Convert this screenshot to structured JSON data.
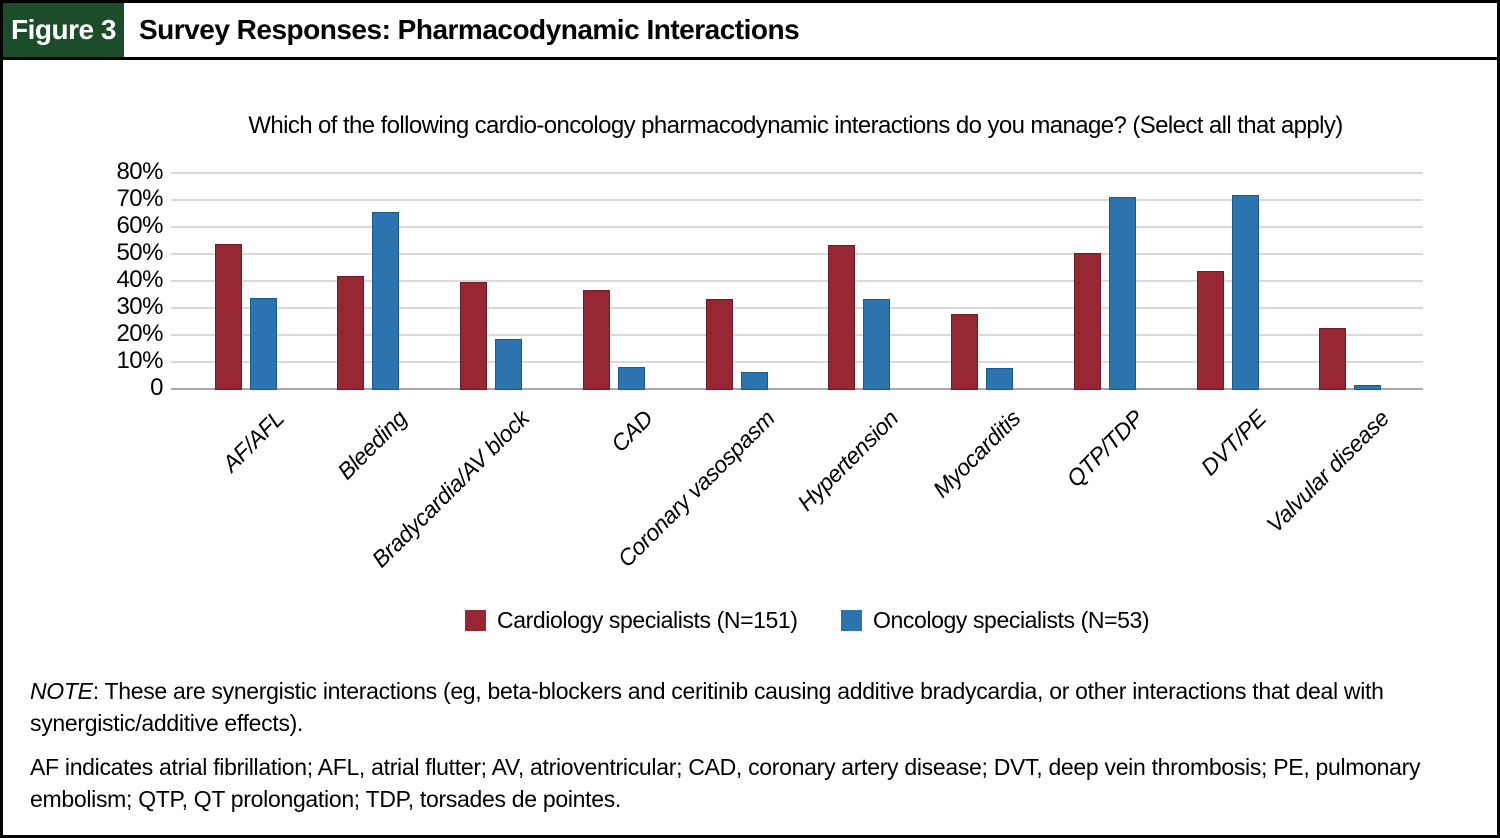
{
  "figure": {
    "tag": "Figure 3",
    "title": "Survey Responses: Pharmacodynamic Interactions"
  },
  "chart_data": {
    "type": "bar",
    "title": "Which of the following cardio-oncology pharmacodynamic interactions do you manage? (Select all that apply)",
    "categories": [
      "AF/AFL",
      "Bleeding",
      "Bradycardia/AV block",
      "CAD",
      "Coronary vasospasm",
      "Hypertension",
      "Myocarditis",
      "QTP/TDP",
      "DVT/PE",
      "Valvular disease"
    ],
    "series": [
      {
        "name": "Cardiology specialists (N=151)",
        "color": "#972833",
        "border": "#6E1C26",
        "values": [
          54,
          42,
          40,
          37,
          33.5,
          53.5,
          28,
          50.5,
          44,
          23
        ]
      },
      {
        "name": "Oncology specialists (N=53)",
        "color": "#2B74B0",
        "border": "#1A5A91",
        "values": [
          34,
          66,
          19,
          8.5,
          6.5,
          33.5,
          8,
          71.5,
          72,
          2
        ]
      }
    ],
    "ylabel": "",
    "xlabel": "",
    "ylim": [
      0,
      80
    ],
    "ytick_step": 10,
    "ytick_labels": [
      "0",
      "10%",
      "20%",
      "30%",
      "40%",
      "50%",
      "60%",
      "70%",
      "80%"
    ],
    "grid": true,
    "legend_position": "bottom"
  },
  "notes": {
    "note_label": "NOTE",
    "note_text": ": These are synergistic interactions (eg, beta-blockers and ceritinib causing additive bradycardia, or other interactions that deal with synergistic/additive effects).",
    "abbreviations": "AF indicates atrial fibrillation; AFL, atrial flutter; AV, atrioventricular; CAD, coronary artery disease; DVT, deep vein thrombosis; PE, pulmonary embolism; QTP, QT prolongation; TDP, torsades de pointes."
  },
  "colors": {
    "header_green": "#1B4D2B",
    "cardiology_red": "#972833",
    "oncology_blue": "#2B74B0",
    "gridline_gray": "#D9D9D9",
    "baseline_gray": "#A9A9A9",
    "border_black": "#000000"
  }
}
